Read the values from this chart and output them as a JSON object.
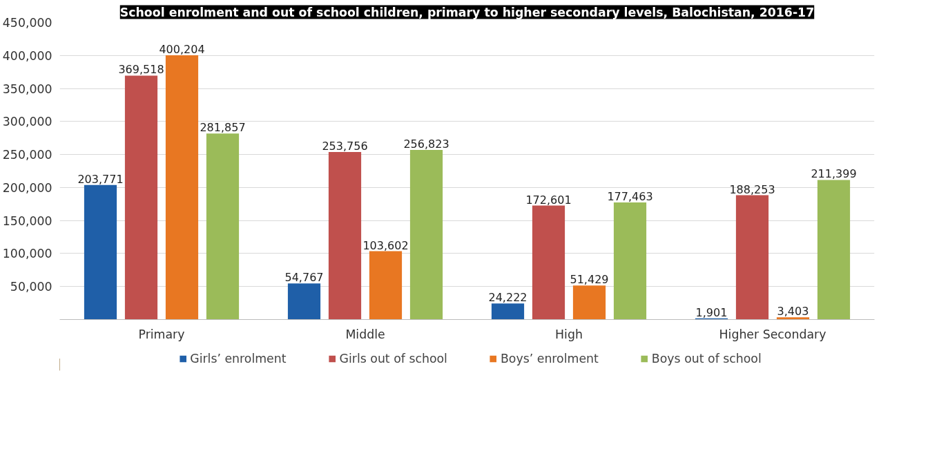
{
  "chart_data": {
    "type": "bar",
    "title": "School enrolment and out of school children, primary to higher secondary levels, Balochistan, 2016-17",
    "categories": [
      "Primary",
      "Middle",
      "High",
      "Higher Secondary"
    ],
    "series": [
      {
        "name": "Girls’ enrolment",
        "color": "#1f5fa8",
        "values": [
          203771,
          54767,
          24222,
          1901
        ],
        "value_labels": [
          "203,771",
          "54,767",
          "24,222",
          "1,901"
        ]
      },
      {
        "name": "Girls out of school",
        "color": "#c0504d",
        "values": [
          369518,
          253756,
          172601,
          188253
        ],
        "value_labels": [
          "369,518",
          "253,756",
          "172,601",
          "188,253"
        ]
      },
      {
        "name": "Boys’ enrolment",
        "color": "#e87722",
        "values": [
          400204,
          103602,
          51429,
          3403
        ],
        "value_labels": [
          "400,204",
          "103,602",
          "51,429",
          "3,403"
        ]
      },
      {
        "name": "Boys out of school",
        "color": "#9bbb59",
        "values": [
          281857,
          256823,
          177463,
          211399
        ],
        "value_labels": [
          "281,857",
          "256,823",
          "177,463",
          "211,399"
        ]
      }
    ],
    "ylim": [
      0,
      450000
    ],
    "yticks": [
      {
        "value": 50000,
        "label": "50,000"
      },
      {
        "value": 100000,
        "label": "100,000"
      },
      {
        "value": 150000,
        "label": "150,000"
      },
      {
        "value": 200000,
        "label": "200,000"
      },
      {
        "value": 250000,
        "label": "250,000"
      },
      {
        "value": 300000,
        "label": "300,000"
      },
      {
        "value": 350000,
        "label": "350,000"
      },
      {
        "value": 400000,
        "label": "400,000"
      },
      {
        "value": 450000,
        "label": "450,000"
      }
    ],
    "grid": "y",
    "legend": "bottom"
  }
}
